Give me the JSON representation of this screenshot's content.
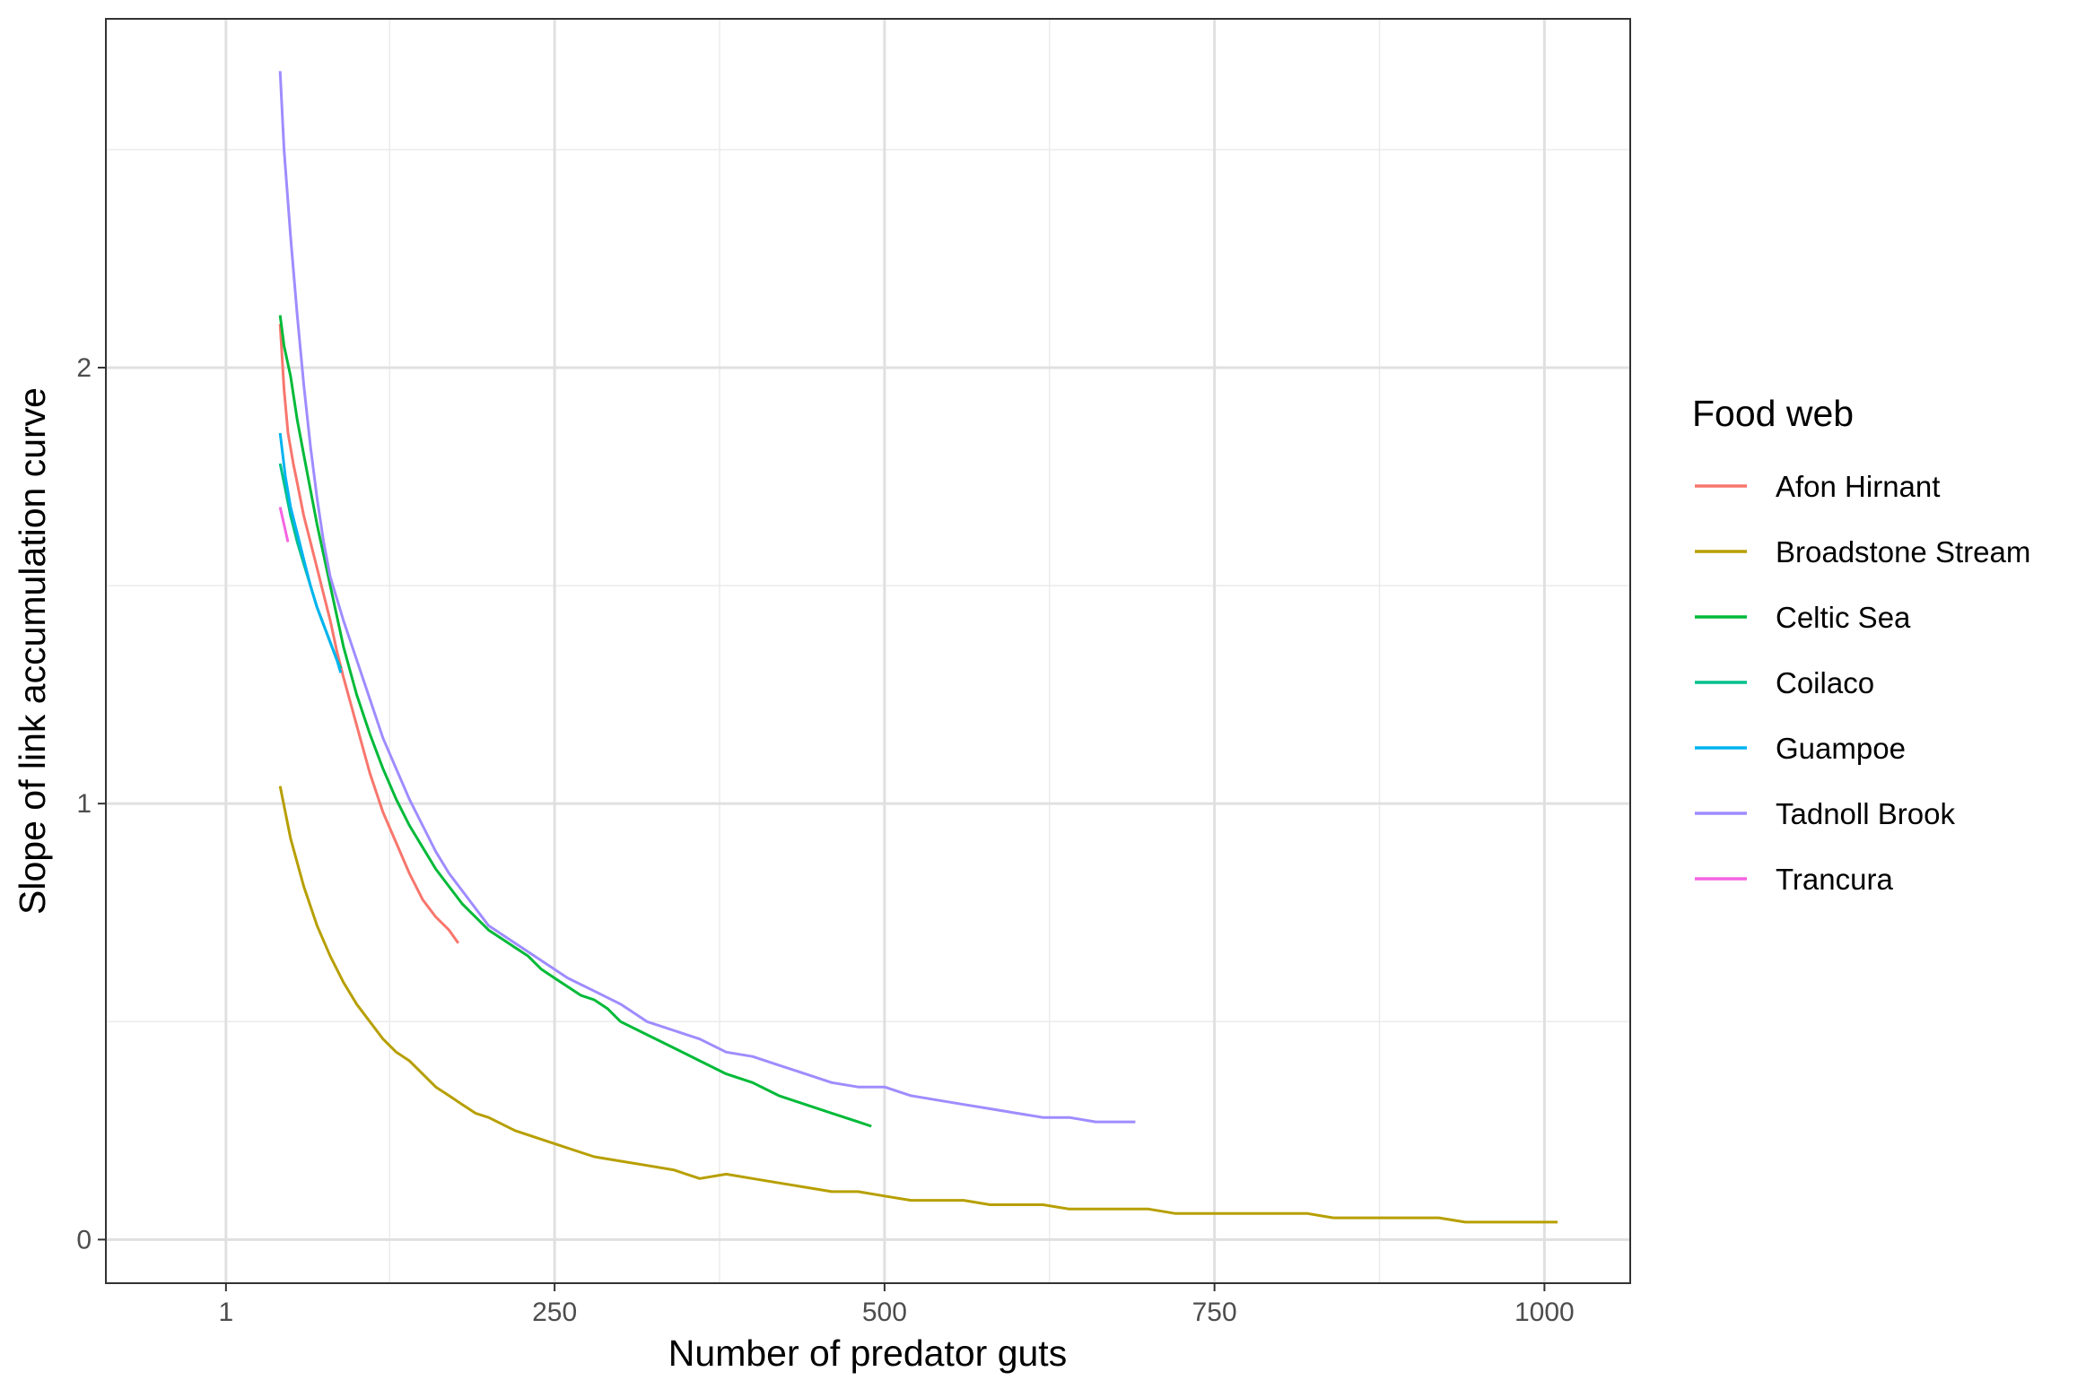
{
  "chart_data": {
    "type": "line",
    "xlabel": "Number of predator guts",
    "ylabel": "Slope of link accumulation curve",
    "xlim": [
      -90,
      1065
    ],
    "ylim": [
      -0.1,
      2.8
    ],
    "x_ticks": [
      1,
      250,
      500,
      750,
      1000
    ],
    "x_tick_labels": [
      "1",
      "250",
      "500",
      "750",
      "1000"
    ],
    "x_minor_ticks": [
      125,
      375,
      625,
      875
    ],
    "y_ticks": [
      0,
      1,
      2
    ],
    "y_tick_labels": [
      "0",
      "1",
      "2"
    ],
    "y_minor_ticks": [
      0.5,
      1.5,
      2.5
    ],
    "grid": true,
    "legend_title": "Food web",
    "legend_position": "right",
    "series": [
      {
        "name": "Afon Hirnant",
        "color": "#F8766D",
        "x": [
          42,
          45,
          48,
          52,
          56,
          60,
          65,
          70,
          75,
          80,
          85,
          90,
          100,
          110,
          120,
          130,
          140,
          150,
          160,
          170,
          177
        ],
        "y": [
          2.1,
          1.95,
          1.85,
          1.78,
          1.72,
          1.66,
          1.6,
          1.54,
          1.48,
          1.42,
          1.35,
          1.29,
          1.18,
          1.07,
          0.98,
          0.91,
          0.84,
          0.78,
          0.74,
          0.71,
          0.68
        ]
      },
      {
        "name": "Broadstone Stream",
        "color": "#B79F00",
        "x": [
          42,
          50,
          60,
          70,
          80,
          90,
          100,
          110,
          120,
          130,
          140,
          150,
          160,
          170,
          180,
          190,
          200,
          220,
          240,
          260,
          280,
          300,
          320,
          340,
          360,
          380,
          400,
          420,
          440,
          460,
          480,
          500,
          520,
          540,
          560,
          580,
          600,
          620,
          640,
          660,
          680,
          700,
          720,
          740,
          760,
          780,
          800,
          820,
          840,
          860,
          880,
          900,
          920,
          940,
          960,
          980,
          1000,
          1010
        ],
        "y": [
          1.04,
          0.92,
          0.81,
          0.72,
          0.65,
          0.59,
          0.54,
          0.5,
          0.46,
          0.43,
          0.41,
          0.38,
          0.35,
          0.33,
          0.31,
          0.29,
          0.28,
          0.25,
          0.23,
          0.21,
          0.19,
          0.18,
          0.17,
          0.16,
          0.14,
          0.15,
          0.14,
          0.13,
          0.12,
          0.11,
          0.11,
          0.1,
          0.09,
          0.09,
          0.09,
          0.08,
          0.08,
          0.08,
          0.07,
          0.07,
          0.07,
          0.07,
          0.06,
          0.06,
          0.06,
          0.06,
          0.06,
          0.06,
          0.05,
          0.05,
          0.05,
          0.05,
          0.05,
          0.04,
          0.04,
          0.04,
          0.04,
          0.04
        ]
      },
      {
        "name": "Celtic Sea",
        "color": "#00BA38",
        "x": [
          42,
          45,
          50,
          55,
          60,
          65,
          70,
          80,
          90,
          100,
          110,
          120,
          130,
          140,
          150,
          160,
          170,
          180,
          190,
          200,
          210,
          220,
          230,
          240,
          250,
          260,
          270,
          280,
          290,
          300,
          320,
          340,
          360,
          380,
          400,
          420,
          440,
          460,
          480,
          490
        ],
        "y": [
          2.12,
          2.05,
          1.98,
          1.88,
          1.8,
          1.72,
          1.64,
          1.5,
          1.36,
          1.25,
          1.16,
          1.08,
          1.01,
          0.95,
          0.9,
          0.85,
          0.81,
          0.77,
          0.74,
          0.71,
          0.69,
          0.67,
          0.65,
          0.62,
          0.6,
          0.58,
          0.56,
          0.55,
          0.53,
          0.5,
          0.47,
          0.44,
          0.41,
          0.38,
          0.36,
          0.33,
          0.31,
          0.29,
          0.27,
          0.26
        ]
      },
      {
        "name": "Coilaco",
        "color": "#00C08B",
        "x": [
          42,
          46,
          50,
          55,
          60,
          65,
          70,
          75,
          80,
          85,
          88
        ],
        "y": [
          1.78,
          1.72,
          1.66,
          1.6,
          1.55,
          1.5,
          1.45,
          1.41,
          1.37,
          1.33,
          1.31
        ]
      },
      {
        "name": "Guampoe",
        "color": "#00B4F0",
        "x": [
          42,
          46,
          50,
          55,
          60,
          65,
          70,
          75,
          80,
          85,
          88
        ],
        "y": [
          1.85,
          1.75,
          1.68,
          1.62,
          1.56,
          1.5,
          1.45,
          1.41,
          1.37,
          1.33,
          1.3
        ]
      },
      {
        "name": "Tadnoll Brook",
        "color": "#9F8CFF",
        "x": [
          42,
          45,
          50,
          55,
          60,
          65,
          70,
          75,
          80,
          90,
          100,
          110,
          120,
          130,
          140,
          150,
          160,
          170,
          180,
          190,
          200,
          220,
          240,
          260,
          280,
          300,
          320,
          340,
          360,
          380,
          400,
          420,
          440,
          460,
          480,
          500,
          520,
          540,
          560,
          580,
          600,
          620,
          640,
          660,
          680,
          690
        ],
        "y": [
          2.68,
          2.5,
          2.3,
          2.12,
          1.96,
          1.82,
          1.7,
          1.6,
          1.52,
          1.42,
          1.33,
          1.24,
          1.15,
          1.08,
          1.01,
          0.95,
          0.89,
          0.84,
          0.8,
          0.76,
          0.72,
          0.68,
          0.64,
          0.6,
          0.57,
          0.54,
          0.5,
          0.48,
          0.46,
          0.43,
          0.42,
          0.4,
          0.38,
          0.36,
          0.35,
          0.35,
          0.33,
          0.32,
          0.31,
          0.3,
          0.29,
          0.28,
          0.28,
          0.27,
          0.27,
          0.27
        ]
      },
      {
        "name": "Trancura",
        "color": "#F564E3",
        "x": [
          42,
          45,
          48
        ],
        "y": [
          1.68,
          1.64,
          1.6
        ]
      }
    ]
  }
}
